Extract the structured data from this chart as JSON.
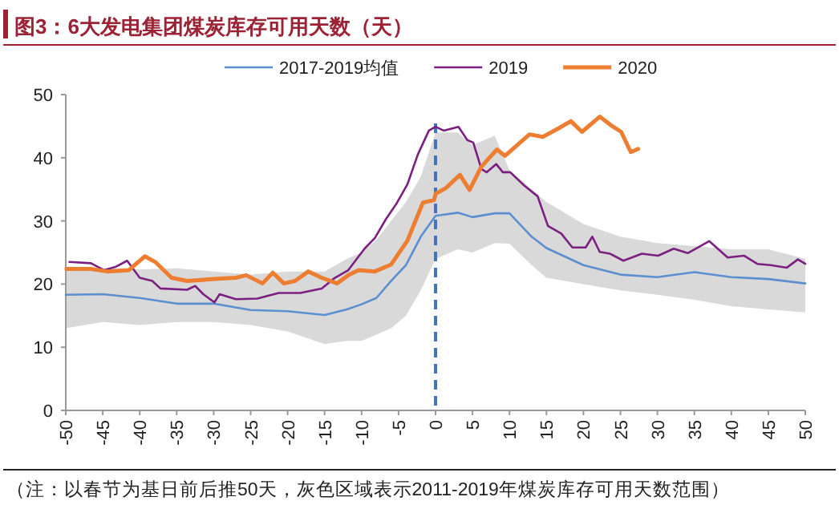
{
  "chart_data": {
    "type": "line",
    "title": "图3：6大发电集团煤炭库存可用天数（天）",
    "annotations": [
      "（注：以春节为基日前后推50天，灰色区域表示2011-2019年煤炭库存可用天数范围）"
    ],
    "xlim": [
      -50,
      50
    ],
    "ylim": [
      0,
      50
    ],
    "xticks": [
      -50,
      -45,
      -40,
      -35,
      -30,
      -25,
      -20,
      -15,
      -10,
      -5,
      0,
      5,
      10,
      15,
      20,
      25,
      30,
      35,
      40,
      45,
      50
    ],
    "yticks": [
      0,
      10,
      20,
      30,
      40,
      50
    ],
    "legend": "top",
    "ref_lines": [
      {
        "axis": "x",
        "value": 0,
        "color": "#4472c4",
        "line_style": "dashed"
      }
    ],
    "series": [
      {
        "name": "2017-2019均值",
        "color": "#5b8fd0",
        "x": [
          -50,
          -45,
          -40,
          -35,
          -30,
          -25,
          -20,
          -15,
          -12,
          -10,
          -8,
          -6,
          -4,
          -2,
          0,
          3,
          5,
          8,
          10,
          13,
          15,
          20,
          25,
          30,
          35,
          40,
          45,
          50
        ],
        "values": [
          18.3,
          18.4,
          17.8,
          16.9,
          16.9,
          15.9,
          15.7,
          15.1,
          16,
          16.8,
          17.8,
          20.5,
          23,
          27.5,
          30.8,
          31.3,
          30.6,
          31.2,
          31.2,
          27.5,
          25.7,
          23,
          21.5,
          21.1,
          21.9,
          21.1,
          20.8,
          20.1
        ],
        "lower": [
          13,
          14,
          13.5,
          14,
          14,
          13.5,
          12.5,
          10.5,
          11,
          11,
          12,
          13,
          15,
          19,
          24,
          25.5,
          25,
          26.5,
          26.4,
          23,
          21,
          20,
          19,
          18.3,
          17.5,
          16.5,
          16,
          15.5
        ],
        "upper": [
          22.5,
          22.5,
          22.3,
          22.5,
          22,
          21.5,
          22,
          22,
          24,
          25,
          27,
          30,
          33,
          37,
          44,
          44,
          42,
          43.5,
          38,
          35,
          33,
          29.5,
          27.5,
          26.5,
          26,
          25.5,
          25.5,
          24
        ]
      },
      {
        "name": "2019",
        "color": "#7b2080",
        "x": [
          -49.5,
          -46.6,
          -44.8,
          -43.3,
          -41.7,
          -40,
          -38.3,
          -37.2,
          -33.6,
          -32.5,
          -31.4,
          -29.9,
          -29.2,
          -27,
          -24.1,
          -21.2,
          -18.3,
          -15.4,
          -13.6,
          -11.8,
          -9.6,
          -8.2,
          -6.7,
          -5.3,
          -3.8,
          -2.4,
          -0.9,
          0,
          1.1,
          3.1,
          4.3,
          5.1,
          6.2,
          6.9,
          8.2,
          9.1,
          10.1,
          12,
          13.8,
          15.2,
          17,
          18.5,
          20.3,
          21.2,
          22.2,
          23.6,
          25.4,
          27.9,
          30.1,
          32.2,
          34.1,
          37,
          39.5,
          41.7,
          43.5,
          45.3,
          47.5,
          49,
          50
        ],
        "values": [
          23.5,
          23.3,
          22.2,
          22.7,
          23.7,
          21,
          20.5,
          19.3,
          19.1,
          19.7,
          18.4,
          17.1,
          18.4,
          17.6,
          17.7,
          18.6,
          18.6,
          19.3,
          21,
          22.2,
          25.6,
          27.3,
          30.3,
          32.7,
          35.8,
          40.5,
          44.3,
          44.9,
          44.3,
          44.9,
          42.8,
          42.4,
          38.2,
          37.7,
          39,
          37.7,
          37.7,
          35.6,
          33.9,
          29.2,
          28,
          25.8,
          25.8,
          27.5,
          25.1,
          24.8,
          23.7,
          24.8,
          24.5,
          25.6,
          24.9,
          26.8,
          24.2,
          24.5,
          23.2,
          23,
          22.6,
          23.9,
          23.2
        ]
      },
      {
        "name": "2020",
        "color": "#ed7d31",
        "x": [
          -49.9,
          -46.6,
          -44.4,
          -41.5,
          -39.3,
          -37.9,
          -35.7,
          -33.6,
          -29.9,
          -27,
          -25.6,
          -23.4,
          -22,
          -20.5,
          -19,
          -17.2,
          -15.4,
          -13.3,
          -11.8,
          -10.4,
          -8.2,
          -6,
          -3.8,
          -1.7,
          -0.2,
          0,
          1.4,
          3.3,
          4.6,
          6.2,
          8.3,
          9.4,
          12.7,
          14.5,
          16.7,
          18.3,
          19.8,
          22.2,
          23.9,
          25.1,
          26.4,
          27.4
        ],
        "values": [
          22.4,
          22.4,
          22,
          22.2,
          24.4,
          23.5,
          21,
          20.5,
          20.8,
          21,
          21.4,
          20.1,
          21.8,
          20.1,
          20.5,
          22,
          21,
          20.1,
          21.4,
          22.2,
          22,
          23.1,
          26.9,
          32.9,
          33.3,
          34.3,
          35.2,
          37.3,
          34.9,
          38.6,
          41.3,
          40.3,
          43.7,
          43.3,
          44.7,
          45.8,
          44.1,
          46.5,
          45,
          44.1,
          40.9,
          41.4
        ]
      }
    ]
  }
}
